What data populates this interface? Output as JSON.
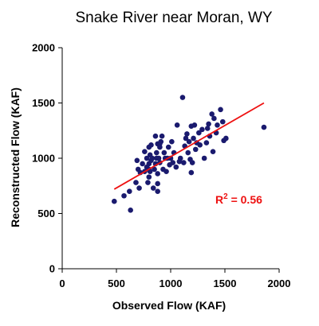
{
  "chart_data": {
    "type": "scatter",
    "title": "Snake River near Moran, WY",
    "xlabel": "Observed Flow (KAF)",
    "ylabel": "Reconstructed Flow (KAF)",
    "xlim": [
      0,
      2000
    ],
    "ylim": [
      0,
      2000
    ],
    "xticks": [
      0,
      500,
      1000,
      1500,
      2000
    ],
    "yticks": [
      0,
      500,
      1000,
      1500,
      2000
    ],
    "grid": false,
    "annotation": {
      "base": "R",
      "superscript": "2",
      "value": " = 0.56",
      "color": "#ee1111"
    },
    "trendline": {
      "color": "#ee1111",
      "x": [
        480,
        1860
      ],
      "y": [
        720,
        1500
      ]
    },
    "point_color": "#1a1a6e",
    "points": {
      "x": [
        480,
        570,
        620,
        630,
        680,
        690,
        700,
        710,
        720,
        740,
        760,
        760,
        780,
        780,
        790,
        800,
        800,
        800,
        800,
        810,
        810,
        820,
        820,
        830,
        840,
        850,
        860,
        860,
        870,
        870,
        880,
        880,
        880,
        880,
        890,
        900,
        900,
        900,
        910,
        920,
        930,
        940,
        950,
        960,
        970,
        980,
        990,
        1000,
        1010,
        1020,
        1030,
        1050,
        1060,
        1080,
        1090,
        1110,
        1120,
        1130,
        1140,
        1150,
        1160,
        1170,
        1180,
        1190,
        1190,
        1200,
        1210,
        1220,
        1230,
        1240,
        1260,
        1270,
        1290,
        1310,
        1330,
        1340,
        1350,
        1360,
        1380,
        1390,
        1400,
        1420,
        1430,
        1460,
        1480,
        1490,
        1510,
        1860
      ],
      "y": [
        610,
        660,
        700,
        530,
        780,
        980,
        900,
        730,
        870,
        950,
        1060,
        880,
        920,
        1000,
        780,
        900,
        1100,
        950,
        830,
        1030,
        880,
        980,
        1120,
        1000,
        730,
        900,
        1200,
        950,
        1000,
        1050,
        1130,
        860,
        770,
        700,
        1000,
        1100,
        960,
        1130,
        1150,
        1200,
        900,
        1050,
        1000,
        880,
        1000,
        1100,
        940,
        1000,
        1150,
        960,
        1050,
        920,
        1300,
        970,
        1000,
        1550,
        960,
        1110,
        1180,
        1220,
        1050,
        1150,
        990,
        1290,
        870,
        960,
        1180,
        1300,
        1080,
        1140,
        1230,
        1120,
        1260,
        1000,
        1140,
        1270,
        1310,
        1200,
        1400,
        1060,
        1360,
        1230,
        1300,
        1440,
        1330,
        1160,
        1180,
        1280
      ]
    }
  }
}
